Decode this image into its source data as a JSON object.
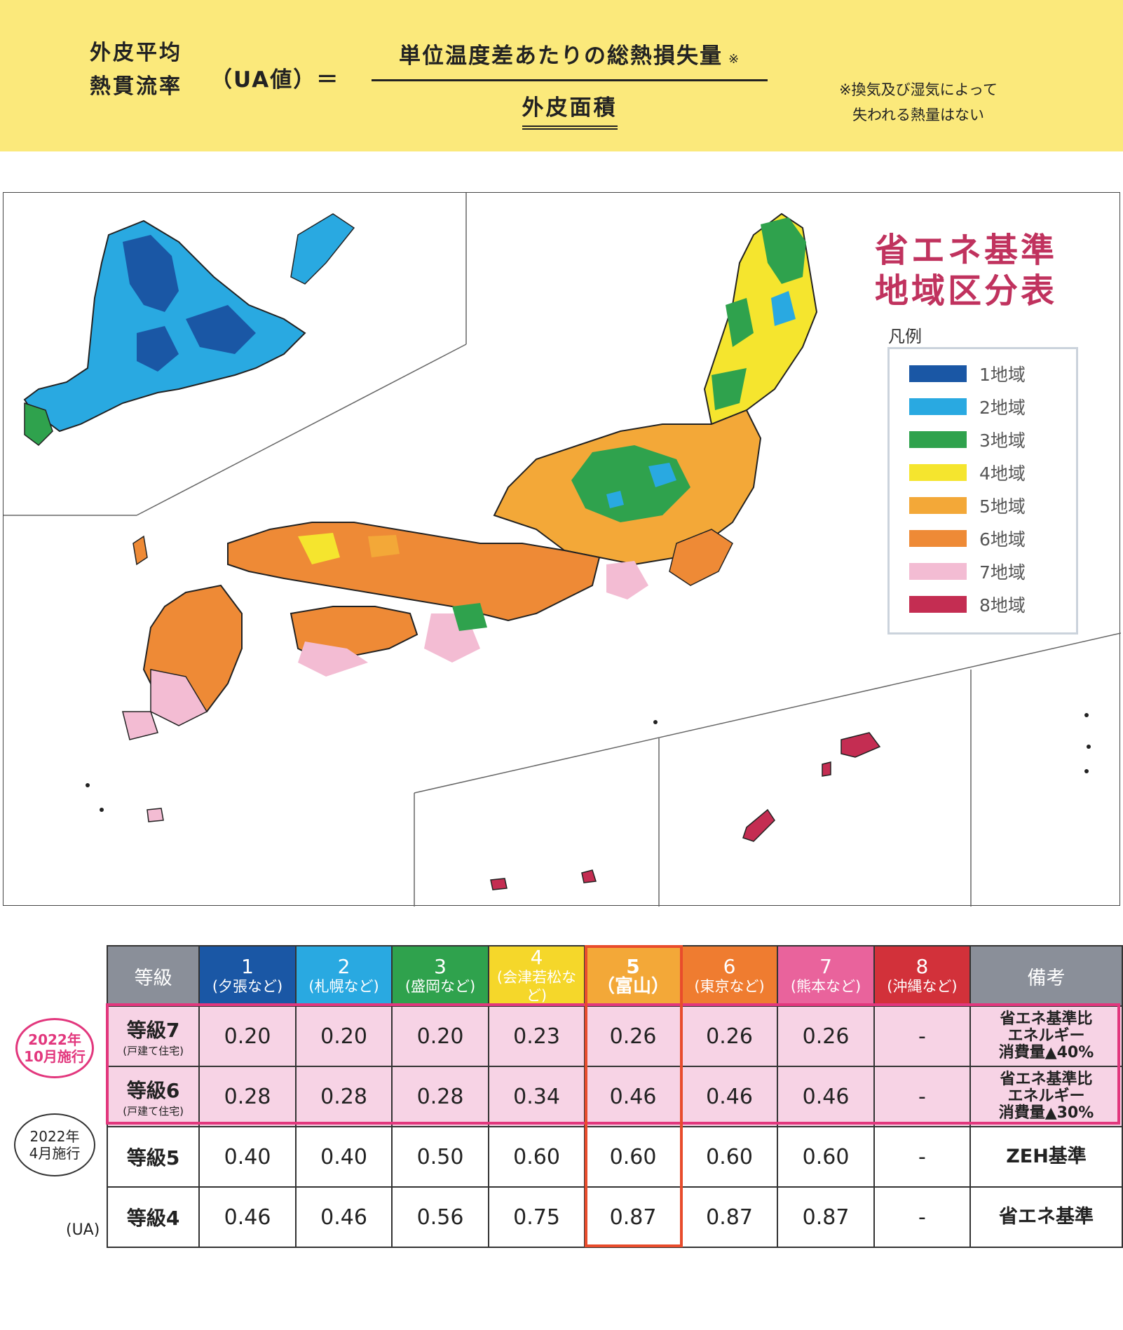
{
  "formula": {
    "lhs_line1": "外皮平均",
    "lhs_line2": "熱貫流率",
    "lhs_symbol": "（UA値）＝",
    "numerator": "単位温度差あたりの総熱損失量",
    "numerator_mark": "※",
    "denominator": "外皮面積",
    "note_line1": "※換気及び湿気によって",
    "note_line2": "失われる熱量はない"
  },
  "map": {
    "title_line1": "省エネ基準",
    "title_line2": "地域区分表",
    "legend_caption": "凡例",
    "legend": [
      {
        "label": "1地域",
        "color": "#1a57a5"
      },
      {
        "label": "2地域",
        "color": "#29a9e1"
      },
      {
        "label": "3地域",
        "color": "#2fa24d"
      },
      {
        "label": "4地域",
        "color": "#f5e52e"
      },
      {
        "label": "5地域",
        "color": "#f3a838"
      },
      {
        "label": "6地域",
        "color": "#ee8a36"
      },
      {
        "label": "7地域",
        "color": "#f3bcd3"
      },
      {
        "label": "8地域",
        "color": "#c42d52"
      }
    ]
  },
  "table": {
    "header_grade": "等級",
    "header_note": "備考",
    "regions": [
      {
        "num": "1",
        "sub": "(夕張など)",
        "color": "#1a57a5"
      },
      {
        "num": "2",
        "sub": "(札幌など)",
        "color": "#29a9e1"
      },
      {
        "num": "3",
        "sub": "(盛岡など)",
        "color": "#2fa24d"
      },
      {
        "num": "4",
        "sub": "(会津若松など)",
        "color": "#f5d72a"
      },
      {
        "num": "5",
        "sub": "（富山）",
        "color": "#f3a838"
      },
      {
        "num": "6",
        "sub": "(東京など)",
        "color": "#ef7c30"
      },
      {
        "num": "7",
        "sub": "(熊本など)",
        "color": "#e9639c"
      },
      {
        "num": "8",
        "sub": "(沖縄など)",
        "color": "#d2313a"
      }
    ],
    "rows": [
      {
        "grade": "等級7",
        "detail": "(戸建て住宅)",
        "values": [
          "0.20",
          "0.20",
          "0.20",
          "0.23",
          "0.26",
          "0.26",
          "0.26",
          "-"
        ],
        "note": [
          "省エネ基準比",
          "エネルギー",
          "消費量▲40%"
        ]
      },
      {
        "grade": "等級6",
        "detail": "(戸建て住宅)",
        "values": [
          "0.28",
          "0.28",
          "0.28",
          "0.34",
          "0.46",
          "0.46",
          "0.46",
          "-"
        ],
        "note": [
          "省エネ基準比",
          "エネルギー",
          "消費量▲30%"
        ]
      },
      {
        "grade": "等級5",
        "detail": "",
        "values": [
          "0.40",
          "0.40",
          "0.50",
          "0.60",
          "0.60",
          "0.60",
          "0.60",
          "-"
        ],
        "note": [
          "ZEH基準"
        ]
      },
      {
        "grade": "等級4",
        "detail": "",
        "values": [
          "0.46",
          "0.46",
          "0.56",
          "0.75",
          "0.87",
          "0.87",
          "0.87",
          "-"
        ],
        "note": [
          "省エネ基準"
        ]
      }
    ],
    "bubble_oct_line1": "2022年",
    "bubble_oct_line2": "10月施行",
    "bubble_apr_line1": "2022年",
    "bubble_apr_line2": "4月施行",
    "unit_label": "(UA)"
  }
}
